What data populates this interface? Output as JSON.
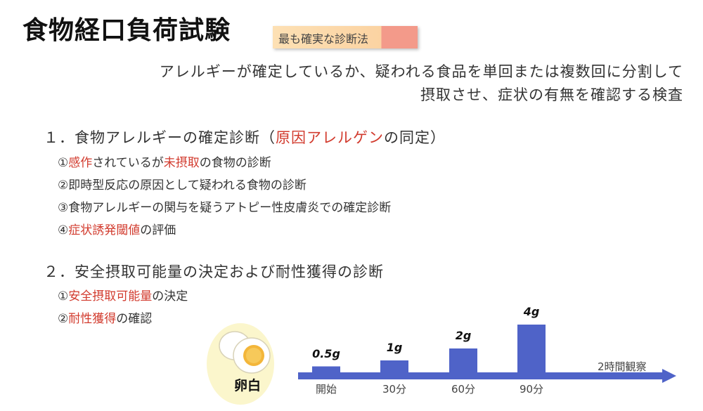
{
  "title": "食物経口負荷試験",
  "badge": "最も確実な診断法",
  "intro": {
    "line1": "アレルギーが確定しているか、疑われる食品を単回または複数回に分割して",
    "line2": "摂取させ、症状の有無を確認する検査"
  },
  "section1": {
    "head_a": "１．食物アレルギーの確定診断（",
    "head_red": "原因アレルゲン",
    "head_b": "の同定）",
    "items": [
      {
        "num": "①",
        "red": "感作",
        "mid": "されているが",
        "red2": "未摂取",
        "rest": "の食物の診断"
      },
      {
        "num": "②",
        "text": "即時型反応の原因として疑われる食物の診断"
      },
      {
        "num": "③",
        "text": "食物アレルギーの関与を疑うアトピー性皮膚炎での確定診断"
      },
      {
        "num": "④",
        "red": "症状誘発閾値",
        "rest": "の評価"
      }
    ]
  },
  "section2": {
    "head": "２．安全摂取可能量の決定および耐性獲得の診断",
    "items": [
      {
        "num": "①",
        "red": "安全摂取可能量",
        "rest": "の決定"
      },
      {
        "num": "②",
        "red": "耐性獲得",
        "rest": "の確認"
      }
    ]
  },
  "figure": {
    "food_label": "卵白",
    "observe_label": "2時間観察",
    "colors": {
      "bar": "#4f63c8",
      "axis": "#4f63c8",
      "egg_bg": "#fbf6cc",
      "accent": "#d23b2e"
    }
  },
  "chart_data": {
    "type": "bar",
    "categories": [
      "開始",
      "30分",
      "60分",
      "90分"
    ],
    "values": [
      0.5,
      1,
      2,
      4
    ],
    "data_labels": [
      "0.5g",
      "1g",
      "2g",
      "4g"
    ],
    "annotation": "2時間観察",
    "title": "",
    "xlabel": "",
    "ylabel": ""
  }
}
